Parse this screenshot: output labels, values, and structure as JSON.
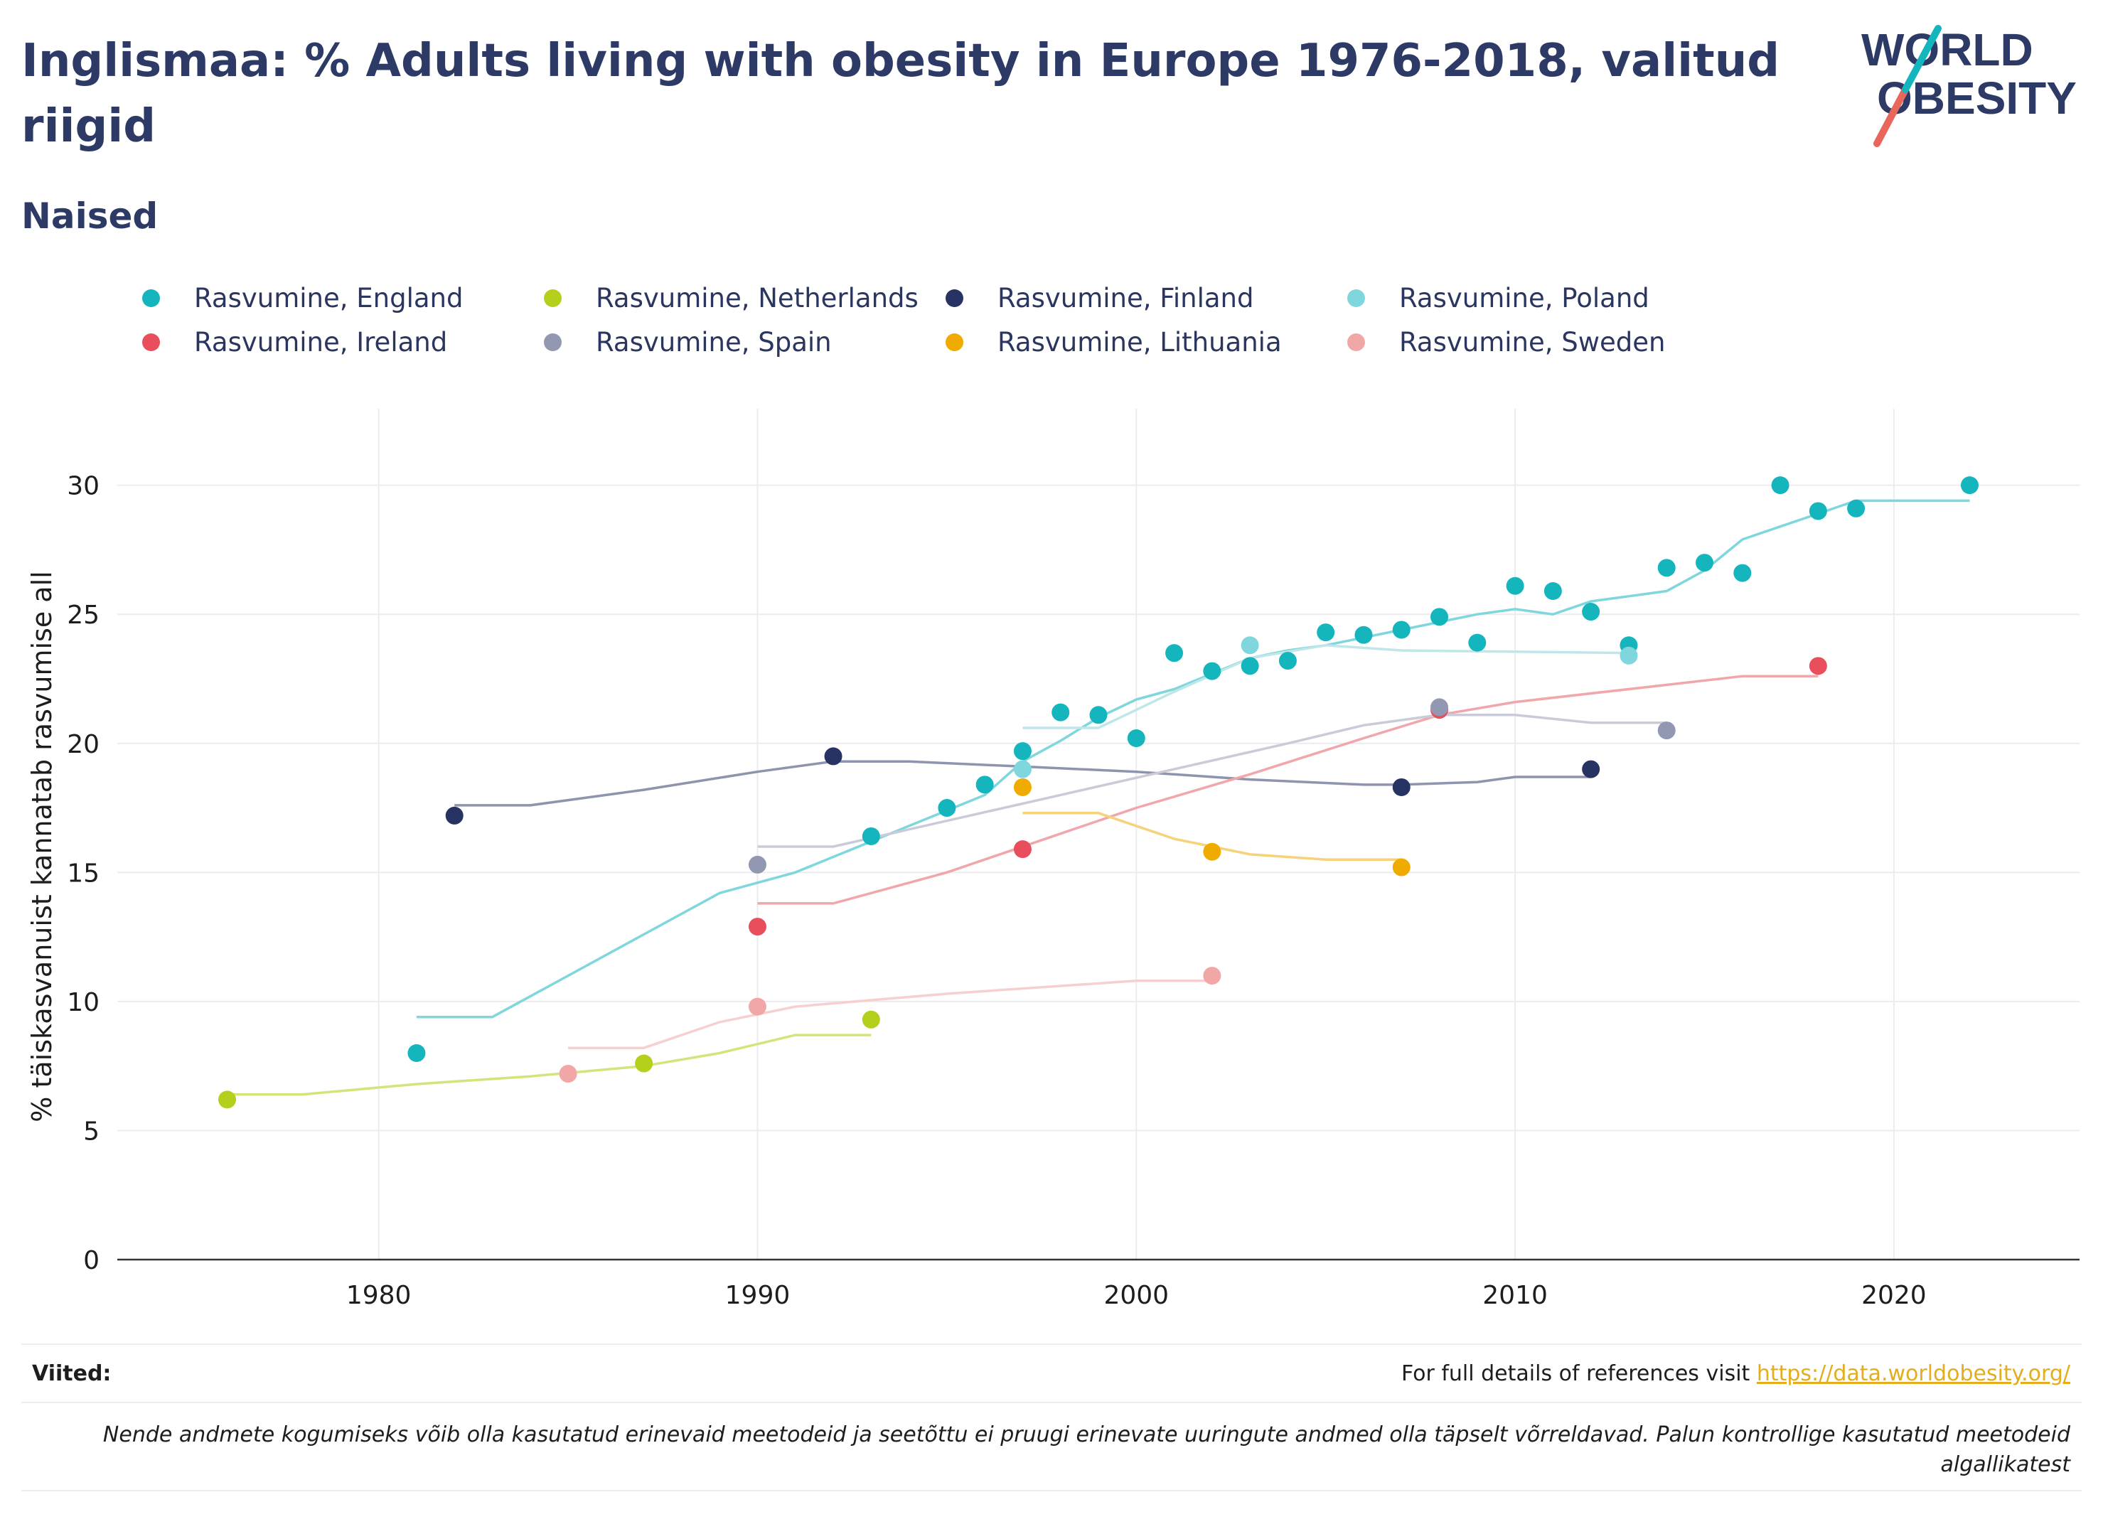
{
  "title": "Inglismaa: % Adults living with obesity in Europe 1976-2018, valitud riigid",
  "subtitle": "Naised",
  "logo": {
    "line1": "WORLD",
    "line2": "OBESITY"
  },
  "references": {
    "label": "Viited:",
    "text": "For full details of references visit ",
    "link": "https://data.worldobesity.org/"
  },
  "note": "Nende andmete kogumiseks võib olla kasutatud erinevaid meetodeid ja seetõttu ei pruugi erinevate uuringute andmed olla täpselt võrreldavad. Palun kontrollige kasutatud meetodeid algallikatest",
  "chart_data": {
    "type": "scatter",
    "xlabel": "",
    "ylabel": "% täiskasvanuist kannatab rasvumise all",
    "xlim": [
      1973.1,
      2024.9
    ],
    "ylim": [
      0,
      32
    ],
    "xticks": [
      1980,
      1990,
      2000,
      2010,
      2020
    ],
    "yticks": [
      0,
      5,
      10,
      15,
      20,
      25,
      30
    ],
    "grid": true,
    "legend_position": "top",
    "series": [
      {
        "name": "Rasvumine, England",
        "color": "#14b5bd",
        "trend_color": "#7fd6dd",
        "points": [
          [
            1981,
            8.0
          ],
          [
            1993,
            16.4
          ],
          [
            1995,
            17.5
          ],
          [
            1996,
            18.4
          ],
          [
            1997,
            19.7
          ],
          [
            1998,
            21.2
          ],
          [
            1999,
            21.1
          ],
          [
            2000,
            20.2
          ],
          [
            2001,
            23.5
          ],
          [
            2002,
            22.8
          ],
          [
            2003,
            23.0
          ],
          [
            2004,
            23.2
          ],
          [
            2005,
            24.3
          ],
          [
            2006,
            24.2
          ],
          [
            2007,
            24.4
          ],
          [
            2008,
            24.9
          ],
          [
            2009,
            23.9
          ],
          [
            2010,
            26.1
          ],
          [
            2011,
            25.9
          ],
          [
            2012,
            25.1
          ],
          [
            2013,
            23.8
          ],
          [
            2014,
            26.8
          ],
          [
            2015,
            27.0
          ],
          [
            2016,
            26.6
          ],
          [
            2017,
            30.0
          ],
          [
            2018,
            29.0
          ],
          [
            2019,
            29.1
          ],
          [
            2022,
            30.0
          ]
        ],
        "trend": [
          [
            1981,
            9.4
          ],
          [
            1983,
            9.4
          ],
          [
            1985,
            11.0
          ],
          [
            1987,
            12.6
          ],
          [
            1989,
            14.2
          ],
          [
            1991,
            15.0
          ],
          [
            1992,
            15.6
          ],
          [
            1993,
            16.2
          ],
          [
            1994,
            16.8
          ],
          [
            1995,
            17.4
          ],
          [
            1996,
            18.0
          ],
          [
            1997,
            19.3
          ],
          [
            1998,
            20.1
          ],
          [
            1999,
            21.0
          ],
          [
            2000,
            21.7
          ],
          [
            2001,
            22.1
          ],
          [
            2002,
            22.7
          ],
          [
            2003,
            23.3
          ],
          [
            2004,
            23.6
          ],
          [
            2005,
            23.8
          ],
          [
            2006,
            24.1
          ],
          [
            2007,
            24.4
          ],
          [
            2008,
            24.7
          ],
          [
            2009,
            25.0
          ],
          [
            2010,
            25.2
          ],
          [
            2011,
            25.0
          ],
          [
            2012,
            25.5
          ],
          [
            2013,
            25.7
          ],
          [
            2014,
            25.9
          ],
          [
            2015,
            26.7
          ],
          [
            2016,
            27.9
          ],
          [
            2017,
            28.4
          ],
          [
            2018,
            28.9
          ],
          [
            2019,
            29.4
          ],
          [
            2022,
            29.4
          ]
        ]
      },
      {
        "name": "Rasvumine, Netherlands",
        "color": "#b6ce1c",
        "trend_color": "#d6e37a",
        "points": [
          [
            1976,
            6.2
          ],
          [
            1987,
            7.6
          ],
          [
            1993,
            9.3
          ]
        ],
        "trend": [
          [
            1976,
            6.4
          ],
          [
            1978,
            6.4
          ],
          [
            1981,
            6.8
          ],
          [
            1984,
            7.1
          ],
          [
            1987,
            7.5
          ],
          [
            1989,
            8.0
          ],
          [
            1991,
            8.7
          ],
          [
            1993,
            8.7
          ]
        ]
      },
      {
        "name": "Rasvumine, Finland",
        "color": "#273363",
        "trend_color": "#8e94ad",
        "points": [
          [
            1982,
            17.2
          ],
          [
            1992,
            19.5
          ],
          [
            2007,
            18.3
          ],
          [
            2012,
            19.0
          ]
        ],
        "trend": [
          [
            1982,
            17.6
          ],
          [
            1984,
            17.6
          ],
          [
            1987,
            18.2
          ],
          [
            1990,
            18.9
          ],
          [
            1992,
            19.3
          ],
          [
            1994,
            19.3
          ],
          [
            1997,
            19.1
          ],
          [
            2000,
            18.9
          ],
          [
            2003,
            18.6
          ],
          [
            2006,
            18.4
          ],
          [
            2007,
            18.4
          ],
          [
            2009,
            18.5
          ],
          [
            2010,
            18.7
          ],
          [
            2012,
            18.7
          ]
        ]
      },
      {
        "name": "Rasvumine, Poland",
        "color": "#7fd6dd",
        "trend_color": "#bfe7ea",
        "points": [
          [
            1997,
            19.0
          ],
          [
            2003,
            23.8
          ],
          [
            2013,
            23.4
          ]
        ],
        "trend": [
          [
            1997,
            20.6
          ],
          [
            1999,
            20.6
          ],
          [
            2001,
            22.0
          ],
          [
            2003,
            23.3
          ],
          [
            2005,
            23.8
          ],
          [
            2007,
            23.6
          ],
          [
            2013,
            23.5
          ]
        ]
      },
      {
        "name": "Rasvumine, Ireland",
        "color": "#e84e5b",
        "trend_color": "#f0a6ab",
        "points": [
          [
            1990,
            12.9
          ],
          [
            1997,
            15.9
          ],
          [
            2008,
            21.3
          ],
          [
            2018,
            23.0
          ]
        ],
        "trend": [
          [
            1990,
            13.8
          ],
          [
            1992,
            13.8
          ],
          [
            1995,
            15.0
          ],
          [
            1998,
            16.5
          ],
          [
            2000,
            17.5
          ],
          [
            2003,
            18.8
          ],
          [
            2006,
            20.2
          ],
          [
            2008,
            21.1
          ],
          [
            2010,
            21.6
          ],
          [
            2013,
            22.1
          ],
          [
            2016,
            22.6
          ],
          [
            2018,
            22.6
          ]
        ]
      },
      {
        "name": "Rasvumine, Spain",
        "color": "#9298b2",
        "trend_color": "#c9ccd8",
        "points": [
          [
            1990,
            15.3
          ],
          [
            2008,
            21.4
          ],
          [
            2014,
            20.5
          ]
        ],
        "trend": [
          [
            1990,
            16.0
          ],
          [
            1992,
            16.0
          ],
          [
            1995,
            17.0
          ],
          [
            1998,
            18.0
          ],
          [
            2001,
            19.0
          ],
          [
            2004,
            20.0
          ],
          [
            2006,
            20.7
          ],
          [
            2008,
            21.1
          ],
          [
            2010,
            21.1
          ],
          [
            2012,
            20.8
          ],
          [
            2014,
            20.8
          ]
        ]
      },
      {
        "name": "Rasvumine, Lithuania",
        "color": "#f0ab00",
        "trend_color": "#f6d27a",
        "points": [
          [
            1997,
            18.3
          ],
          [
            2002,
            15.8
          ],
          [
            2007,
            15.2
          ]
        ],
        "trend": [
          [
            1997,
            17.3
          ],
          [
            1999,
            17.3
          ],
          [
            2001,
            16.3
          ],
          [
            2003,
            15.7
          ],
          [
            2005,
            15.5
          ],
          [
            2007,
            15.5
          ]
        ]
      },
      {
        "name": "Rasvumine, Sweden",
        "color": "#f2a7a7",
        "trend_color": "#f6d0d1",
        "points": [
          [
            1985,
            7.2
          ],
          [
            1990,
            9.8
          ],
          [
            2002,
            11.0
          ]
        ],
        "trend": [
          [
            1985,
            8.2
          ],
          [
            1987,
            8.2
          ],
          [
            1989,
            9.2
          ],
          [
            1991,
            9.8
          ],
          [
            1995,
            10.3
          ],
          [
            2000,
            10.8
          ],
          [
            2002,
            10.8
          ]
        ]
      }
    ]
  }
}
